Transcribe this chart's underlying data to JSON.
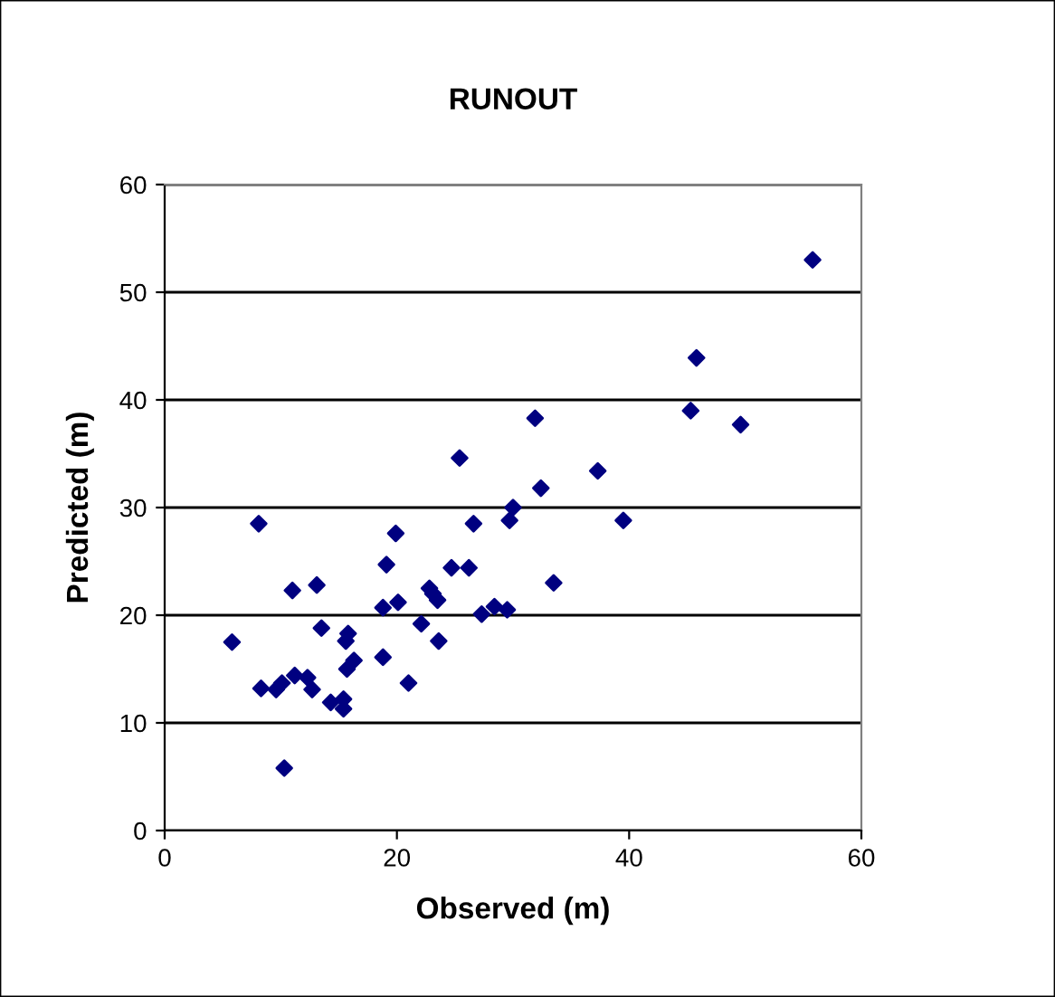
{
  "chart_data": {
    "type": "scatter",
    "title": "RUNOUT",
    "xlabel": "Observed (m)",
    "ylabel": "Predicted (m)",
    "xlim": [
      0,
      60
    ],
    "ylim": [
      0,
      60
    ],
    "xticks": [
      0,
      20,
      40,
      60
    ],
    "yticks": [
      0,
      10,
      20,
      30,
      40,
      50,
      60
    ],
    "grid": "y",
    "marker": "diamond",
    "legend": false,
    "series": [
      {
        "color": "#000080",
        "x": [
          5.8,
          8.1,
          8.3,
          9.6,
          10.1,
          10.3,
          11.0,
          11.2,
          12.3,
          12.7,
          13.1,
          13.5,
          14.3,
          15.4,
          15.4,
          15.6,
          15.8,
          15.7,
          16.3,
          18.8,
          18.8,
          19.1,
          19.9,
          20.1,
          21.0,
          22.1,
          22.8,
          23.1,
          23.5,
          23.6,
          24.7,
          25.4,
          26.2,
          26.6,
          27.3,
          28.4,
          29.5,
          29.7,
          30.0,
          31.9,
          32.4,
          33.5,
          37.3,
          39.5,
          45.3,
          45.8,
          49.6,
          55.8
        ],
        "values": [
          17.5,
          28.5,
          13.2,
          13.1,
          13.7,
          5.8,
          22.3,
          14.4,
          14.2,
          13.1,
          22.8,
          18.8,
          11.9,
          11.3,
          12.2,
          17.6,
          18.3,
          15.0,
          15.8,
          16.1,
          20.7,
          24.7,
          27.6,
          21.2,
          13.7,
          19.2,
          22.5,
          22.0,
          21.4,
          17.6,
          24.4,
          34.6,
          24.4,
          28.5,
          20.1,
          20.8,
          20.5,
          28.8,
          30.0,
          38.3,
          31.8,
          23.0,
          33.4,
          28.8,
          39.0,
          43.9,
          37.7,
          53.0
        ]
      }
    ]
  }
}
